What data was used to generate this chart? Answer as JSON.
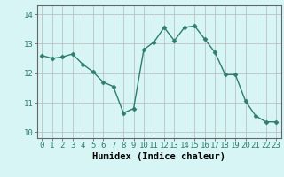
{
  "x": [
    0,
    1,
    2,
    3,
    4,
    5,
    6,
    7,
    8,
    9,
    10,
    11,
    12,
    13,
    14,
    15,
    16,
    17,
    18,
    19,
    20,
    21,
    22,
    23
  ],
  "y": [
    12.6,
    12.5,
    12.55,
    12.65,
    12.3,
    12.05,
    11.7,
    11.55,
    10.65,
    10.8,
    12.8,
    13.05,
    13.55,
    13.1,
    13.55,
    13.6,
    13.15,
    12.7,
    11.95,
    11.95,
    11.05,
    10.55,
    10.35,
    10.35
  ],
  "line_color": "#2e7d6e",
  "marker": "D",
  "markersize": 2.5,
  "linewidth": 1.0,
  "bg_color": "#d8f5f5",
  "grid_color": "#b8b8b8",
  "grid_color_v": "#c8c8c8",
  "xlabel": "Humidex (Indice chaleur)",
  "ylim": [
    9.8,
    14.3
  ],
  "xlim": [
    -0.5,
    23.5
  ],
  "yticks": [
    10,
    11,
    12,
    13,
    14
  ],
  "xticks": [
    0,
    1,
    2,
    3,
    4,
    5,
    6,
    7,
    8,
    9,
    10,
    11,
    12,
    13,
    14,
    15,
    16,
    17,
    18,
    19,
    20,
    21,
    22,
    23
  ],
  "xlabel_fontsize": 7.5,
  "tick_fontsize": 6.5
}
